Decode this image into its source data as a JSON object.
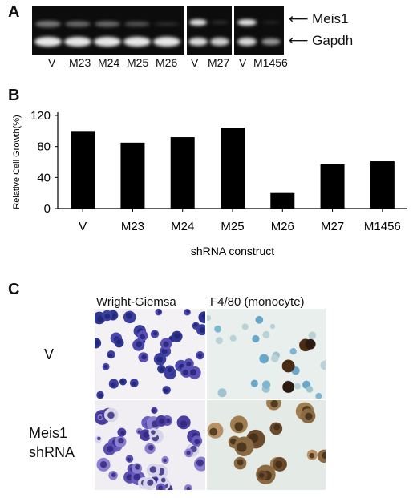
{
  "panel_a": {
    "letter": "A",
    "lanes_1": [
      "V",
      "M23",
      "M24",
      "M25",
      "M26"
    ],
    "lanes_2": [
      "V",
      "M27"
    ],
    "lanes_3": [
      "V",
      "M1456"
    ],
    "band_labels": [
      "Meis1",
      "Gapdh"
    ]
  },
  "panel_b": {
    "letter": "B"
  },
  "chart_data": {
    "type": "bar",
    "categories": [
      "V",
      "M23",
      "M24",
      "M25",
      "M26",
      "M27",
      "M1456"
    ],
    "values": [
      100,
      85,
      92,
      104,
      20,
      57,
      61
    ],
    "title": "",
    "xlabel": "shRNA construct",
    "ylabel": "Relative Cell Growth(%)",
    "ylim": [
      0,
      120
    ],
    "yticks": [
      0,
      40,
      80,
      120
    ],
    "bar_color": "#000000",
    "grid": false
  },
  "panel_c": {
    "letter": "C",
    "col_headers": [
      "Wright-Giemsa",
      "F4/80 (monocyte)"
    ],
    "row_labels": [
      "V",
      "Meis1 shRNA"
    ]
  }
}
